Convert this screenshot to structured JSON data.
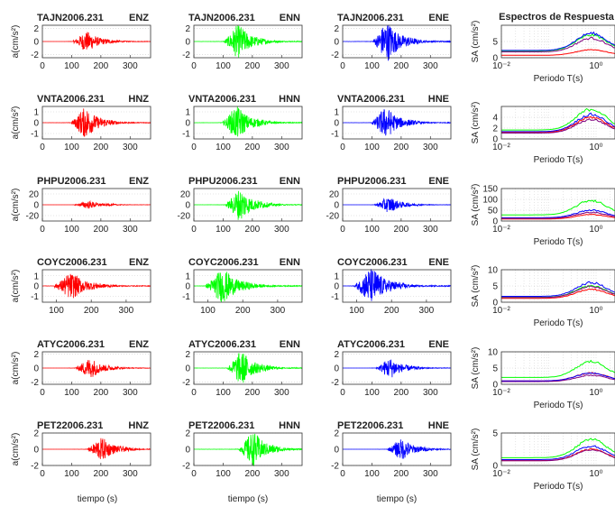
{
  "figure": {
    "spectra_title": "Espectros de Respuesta",
    "time_xlabel": "tiempo (s)",
    "period_xlabel": "Periodo T(s)",
    "ylabel_left": "a(cm/s²)",
    "ylabel_right": "SA (cm/s²)"
  },
  "colors": {
    "Z": "#ff0000",
    "N": "#00ff00",
    "E": "#0000ff",
    "spec_Z": "#ff0000",
    "spec_N": "#00ff00",
    "spec_E": "#0000ff",
    "spec_extra": "#800080"
  },
  "chart_data": [
    {
      "type": "line",
      "station": "TAJN2006.231",
      "comps": [
        "ENZ",
        "ENN",
        "ENE"
      ],
      "xlim": [
        0,
        370
      ],
      "xticks": [
        0,
        100,
        200,
        300
      ],
      "ylim": [
        -2.5,
        2.5
      ],
      "yticks": [
        2,
        0,
        -2
      ],
      "peak_time": 150,
      "amp": {
        "Z": 1.3,
        "N": 2.2,
        "E": 2.6
      },
      "spec_ylim": [
        0,
        10
      ],
      "spec_yticks": [
        0,
        5
      ],
      "spec": {
        "Z": 2.5,
        "N": 7,
        "E": 7.5
      }
    },
    {
      "type": "line",
      "station": "VNTA2006.231",
      "comps": [
        "HNZ",
        "HNN",
        "HNE"
      ],
      "xlim": [
        0,
        370
      ],
      "xticks": [
        0,
        100,
        200,
        300
      ],
      "ylim": [
        -1.5,
        1.5
      ],
      "yticks": [
        1,
        0,
        -1
      ],
      "peak_time": 145,
      "amp": {
        "Z": 1.2,
        "N": 1.3,
        "E": 1.2
      },
      "spec_ylim": [
        0,
        6
      ],
      "spec_yticks": [
        0,
        2,
        4
      ],
      "spec": {
        "Z": 4,
        "N": 5.5,
        "E": 4.5
      }
    },
    {
      "type": "line",
      "station": "PHPU2006.231",
      "comps": [
        "ENZ",
        "ENN",
        "ENE"
      ],
      "xlim": [
        0,
        370
      ],
      "xticks": [
        0,
        100,
        200,
        300
      ],
      "ylim": [
        -30,
        30
      ],
      "yticks": [
        20,
        0,
        -20
      ],
      "peak_time": 155,
      "amp": {
        "Z": 6,
        "N": 25,
        "E": 12
      },
      "spec_ylim": [
        0,
        150
      ],
      "spec_yticks": [
        0,
        50,
        100,
        150
      ],
      "spec": {
        "Z": 30,
        "N": 95,
        "E": 50
      }
    },
    {
      "type": "line",
      "station": "COYC2006.231",
      "comps": [
        "ENZ",
        "ENN",
        "ENE"
      ],
      "xlim": [
        60,
        370
      ],
      "xticks": [
        100,
        200,
        300
      ],
      "ylim": [
        -1.6,
        1.6
      ],
      "yticks": [
        1,
        0,
        -1
      ],
      "peak_time": 140,
      "amp": {
        "Z": 1.1,
        "N": 1.4,
        "E": 1.5
      },
      "spec_ylim": [
        0,
        10
      ],
      "spec_yticks": [
        0,
        5,
        10
      ],
      "spec": {
        "Z": 4,
        "N": 5,
        "E": 6
      }
    },
    {
      "type": "line",
      "station": "ATYC2006.231",
      "comps": [
        "ENZ",
        "ENN",
        "ENE"
      ],
      "xlim": [
        0,
        370
      ],
      "xticks": [
        0,
        100,
        200,
        300
      ],
      "ylim": [
        -2.3,
        2.3
      ],
      "yticks": [
        2,
        0,
        -2
      ],
      "peak_time": 160,
      "amp": {
        "Z": 1.2,
        "N": 2,
        "E": 1.2
      },
      "spec_ylim": [
        0,
        10
      ],
      "spec_yticks": [
        0,
        5,
        10
      ],
      "spec": {
        "Z": 3.5,
        "N": 7,
        "E": 3.5
      }
    },
    {
      "type": "line",
      "station": "PET22006.231",
      "comps": [
        "HNZ",
        "HNN",
        "HNE"
      ],
      "xlim": [
        0,
        370
      ],
      "xticks": [
        0,
        100,
        200,
        300
      ],
      "ylim": [
        -2,
        2
      ],
      "yticks": [
        2,
        0,
        -2
      ],
      "peak_time": 200,
      "amp": {
        "Z": 1.2,
        "N": 1.8,
        "E": 1.1
      },
      "spec_ylim": [
        0,
        5
      ],
      "spec_yticks": [
        0,
        5
      ],
      "spec": {
        "Z": 2.5,
        "N": 4,
        "E": 3
      }
    }
  ]
}
